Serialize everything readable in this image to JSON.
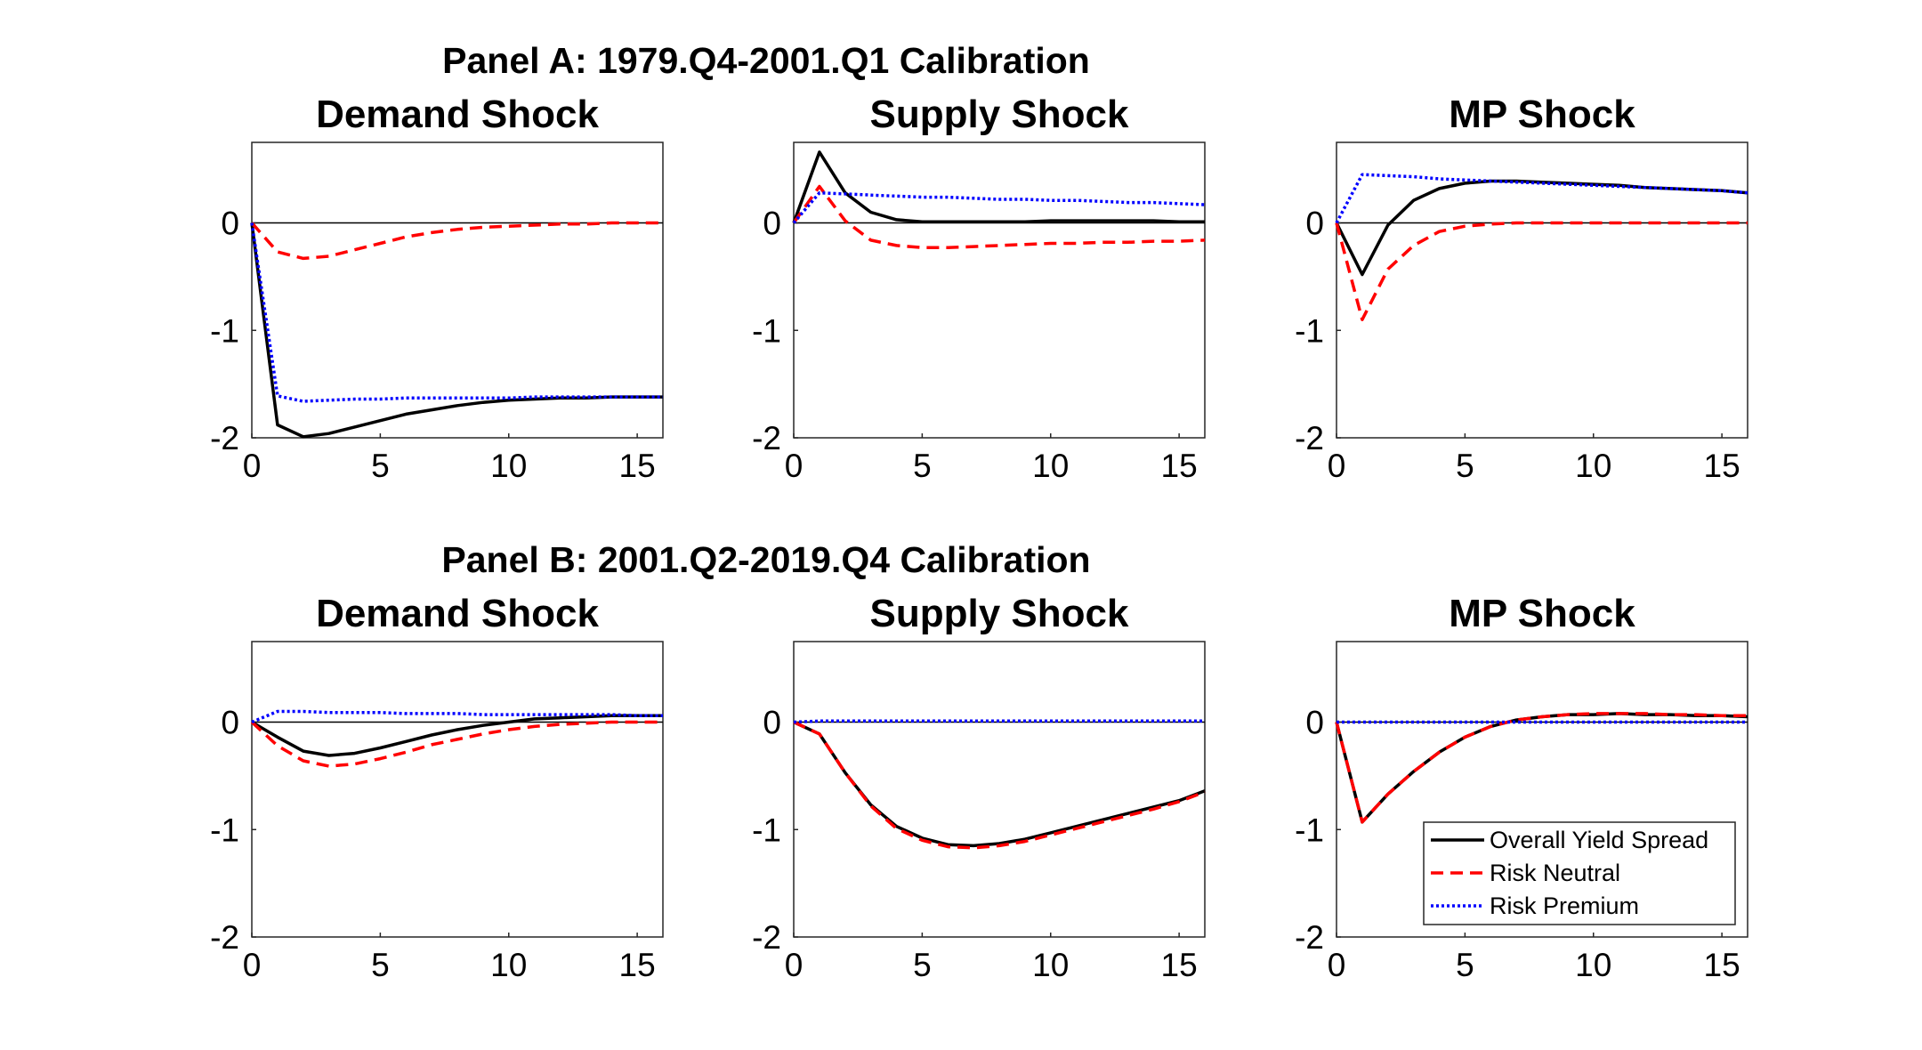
{
  "colors": {
    "overall": "#000000",
    "neutral": "#ff0000",
    "premium": "#0000ff",
    "axis": "#262626"
  },
  "panels": [
    {
      "title": "Panel A: 1979.Q4-2001.Q1 Calibration"
    },
    {
      "title": "Panel B: 2001.Q2-2019.Q4 Calibration"
    }
  ],
  "legend": {
    "placement": "bottom-right of Panel B MP Shock",
    "entries": [
      {
        "label": "Overall Yield Spread",
        "series": "overall",
        "style": "solid"
      },
      {
        "label": "Risk Neutral",
        "series": "neutral",
        "style": "dashed"
      },
      {
        "label": "Risk Premium",
        "series": "premium",
        "style": "dotted"
      }
    ]
  },
  "chart_data": [
    {
      "type": "line",
      "panel": 0,
      "title": "Demand Shock",
      "xlim": [
        0,
        16
      ],
      "ylim": [
        -2,
        0.75
      ],
      "xticks": [
        0,
        5,
        10,
        15
      ],
      "yticks": [
        0,
        -1,
        -2
      ],
      "x": [
        0,
        1,
        2,
        3,
        4,
        5,
        6,
        7,
        8,
        9,
        10,
        11,
        12,
        13,
        14,
        15,
        16
      ],
      "series": [
        {
          "name": "Overall Yield Spread",
          "key": "overall",
          "values": [
            0,
            -1.88,
            -1.99,
            -1.96,
            -1.9,
            -1.84,
            -1.78,
            -1.74,
            -1.7,
            -1.67,
            -1.65,
            -1.64,
            -1.63,
            -1.63,
            -1.62,
            -1.62,
            -1.62
          ]
        },
        {
          "name": "Risk Neutral",
          "key": "neutral",
          "values": [
            0,
            -0.27,
            -0.33,
            -0.31,
            -0.25,
            -0.19,
            -0.13,
            -0.09,
            -0.06,
            -0.04,
            -0.03,
            -0.02,
            -0.01,
            -0.01,
            0,
            0,
            0
          ]
        },
        {
          "name": "Risk Premium",
          "key": "premium",
          "values": [
            0,
            -1.61,
            -1.66,
            -1.65,
            -1.64,
            -1.64,
            -1.63,
            -1.63,
            -1.63,
            -1.63,
            -1.63,
            -1.62,
            -1.62,
            -1.62,
            -1.62,
            -1.62,
            -1.62
          ]
        }
      ]
    },
    {
      "type": "line",
      "panel": 0,
      "title": "Supply Shock",
      "xlim": [
        0,
        16
      ],
      "ylim": [
        -2,
        0.75
      ],
      "xticks": [
        0,
        5,
        10,
        15
      ],
      "yticks": [
        0,
        -1,
        -2
      ],
      "x": [
        0,
        1,
        2,
        3,
        4,
        5,
        6,
        7,
        8,
        9,
        10,
        11,
        12,
        13,
        14,
        15,
        16
      ],
      "series": [
        {
          "name": "Overall Yield Spread",
          "key": "overall",
          "values": [
            0,
            0.66,
            0.28,
            0.1,
            0.03,
            0.01,
            0.01,
            0.01,
            0.01,
            0.01,
            0.02,
            0.02,
            0.02,
            0.02,
            0.02,
            0.01,
            0.01
          ]
        },
        {
          "name": "Risk Neutral",
          "key": "neutral",
          "values": [
            0,
            0.34,
            0.02,
            -0.16,
            -0.21,
            -0.23,
            -0.23,
            -0.22,
            -0.21,
            -0.2,
            -0.19,
            -0.19,
            -0.18,
            -0.18,
            -0.17,
            -0.17,
            -0.16
          ]
        },
        {
          "name": "Risk Premium",
          "key": "premium",
          "values": [
            0,
            0.28,
            0.27,
            0.26,
            0.25,
            0.24,
            0.24,
            0.23,
            0.22,
            0.22,
            0.21,
            0.21,
            0.2,
            0.19,
            0.19,
            0.18,
            0.17
          ]
        }
      ]
    },
    {
      "type": "line",
      "panel": 0,
      "title": "MP Shock",
      "xlim": [
        0,
        16
      ],
      "ylim": [
        -2,
        0.75
      ],
      "xticks": [
        0,
        5,
        10,
        15
      ],
      "yticks": [
        0,
        -1,
        -2
      ],
      "x": [
        0,
        1,
        2,
        3,
        4,
        5,
        6,
        7,
        8,
        9,
        10,
        11,
        12,
        13,
        14,
        15,
        16
      ],
      "series": [
        {
          "name": "Overall Yield Spread",
          "key": "overall",
          "values": [
            0,
            -0.48,
            -0.02,
            0.21,
            0.32,
            0.37,
            0.39,
            0.39,
            0.38,
            0.37,
            0.36,
            0.35,
            0.33,
            0.32,
            0.31,
            0.3,
            0.28
          ]
        },
        {
          "name": "Risk Neutral",
          "key": "neutral",
          "values": [
            0,
            -0.9,
            -0.43,
            -0.21,
            -0.08,
            -0.03,
            -0.01,
            0,
            0,
            0,
            0,
            0,
            0,
            0,
            0,
            0,
            0
          ]
        },
        {
          "name": "Risk Premium",
          "key": "premium",
          "values": [
            0,
            0.45,
            0.44,
            0.43,
            0.41,
            0.4,
            0.39,
            0.38,
            0.37,
            0.36,
            0.35,
            0.34,
            0.33,
            0.32,
            0.31,
            0.3,
            0.28
          ]
        }
      ]
    },
    {
      "type": "line",
      "panel": 1,
      "title": "Demand Shock",
      "xlim": [
        0,
        16
      ],
      "ylim": [
        -2,
        0.75
      ],
      "xticks": [
        0,
        5,
        10,
        15
      ],
      "yticks": [
        0,
        -1,
        -2
      ],
      "x": [
        0,
        1,
        2,
        3,
        4,
        5,
        6,
        7,
        8,
        9,
        10,
        11,
        12,
        13,
        14,
        15,
        16
      ],
      "series": [
        {
          "name": "Overall Yield Spread",
          "key": "overall",
          "values": [
            0,
            -0.14,
            -0.27,
            -0.31,
            -0.29,
            -0.24,
            -0.18,
            -0.12,
            -0.07,
            -0.03,
            0,
            0.03,
            0.04,
            0.05,
            0.06,
            0.06,
            0.06
          ]
        },
        {
          "name": "Risk Neutral",
          "key": "neutral",
          "values": [
            0,
            -0.22,
            -0.36,
            -0.41,
            -0.39,
            -0.34,
            -0.28,
            -0.21,
            -0.16,
            -0.11,
            -0.07,
            -0.04,
            -0.02,
            -0.01,
            0,
            0,
            0
          ]
        },
        {
          "name": "Risk Premium",
          "key": "premium",
          "values": [
            0,
            0.1,
            0.1,
            0.09,
            0.09,
            0.09,
            0.08,
            0.08,
            0.08,
            0.07,
            0.07,
            0.07,
            0.07,
            0.07,
            0.07,
            0.06,
            0.06
          ]
        }
      ]
    },
    {
      "type": "line",
      "panel": 1,
      "title": "Supply Shock",
      "xlim": [
        0,
        16
      ],
      "ylim": [
        -2,
        0.75
      ],
      "xticks": [
        0,
        5,
        10,
        15
      ],
      "yticks": [
        0,
        -1,
        -2
      ],
      "x": [
        0,
        1,
        2,
        3,
        4,
        5,
        6,
        7,
        8,
        9,
        10,
        11,
        12,
        13,
        14,
        15,
        16
      ],
      "series": [
        {
          "name": "Overall Yield Spread",
          "key": "overall",
          "values": [
            0,
            -0.11,
            -0.47,
            -0.77,
            -0.97,
            -1.08,
            -1.14,
            -1.15,
            -1.13,
            -1.09,
            -1.03,
            -0.97,
            -0.91,
            -0.85,
            -0.79,
            -0.73,
            -0.64
          ]
        },
        {
          "name": "Risk Neutral",
          "key": "neutral",
          "values": [
            0,
            -0.11,
            -0.47,
            -0.78,
            -0.99,
            -1.1,
            -1.16,
            -1.17,
            -1.15,
            -1.11,
            -1.05,
            -0.99,
            -0.93,
            -0.87,
            -0.81,
            -0.74,
            -0.65
          ]
        },
        {
          "name": "Risk Premium",
          "key": "premium",
          "values": [
            0,
            0.01,
            0.01,
            0.01,
            0.01,
            0.01,
            0.01,
            0.01,
            0.01,
            0.01,
            0.01,
            0.01,
            0.01,
            0.01,
            0.01,
            0.01,
            0.01
          ]
        }
      ]
    },
    {
      "type": "line",
      "panel": 1,
      "title": "MP Shock",
      "xlim": [
        0,
        16
      ],
      "ylim": [
        -2,
        0.75
      ],
      "xticks": [
        0,
        5,
        10,
        15
      ],
      "yticks": [
        0,
        -1,
        -2
      ],
      "x": [
        0,
        1,
        2,
        3,
        4,
        5,
        6,
        7,
        8,
        9,
        10,
        11,
        12,
        13,
        14,
        15,
        16
      ],
      "series": [
        {
          "name": "Overall Yield Spread",
          "key": "overall",
          "values": [
            0,
            -0.93,
            -0.67,
            -0.46,
            -0.28,
            -0.14,
            -0.04,
            0.02,
            0.05,
            0.07,
            0.07,
            0.08,
            0.07,
            0.07,
            0.06,
            0.06,
            0.05
          ]
        },
        {
          "name": "Risk Neutral",
          "key": "neutral",
          "values": [
            0,
            -0.93,
            -0.67,
            -0.46,
            -0.28,
            -0.14,
            -0.04,
            0.02,
            0.05,
            0.07,
            0.08,
            0.08,
            0.08,
            0.07,
            0.07,
            0.06,
            0.06
          ]
        },
        {
          "name": "Risk Premium",
          "key": "premium",
          "values": [
            0,
            0,
            0,
            0,
            0,
            0,
            0,
            0,
            0,
            0,
            0,
            0,
            0,
            0,
            0,
            0,
            0
          ]
        }
      ]
    }
  ]
}
